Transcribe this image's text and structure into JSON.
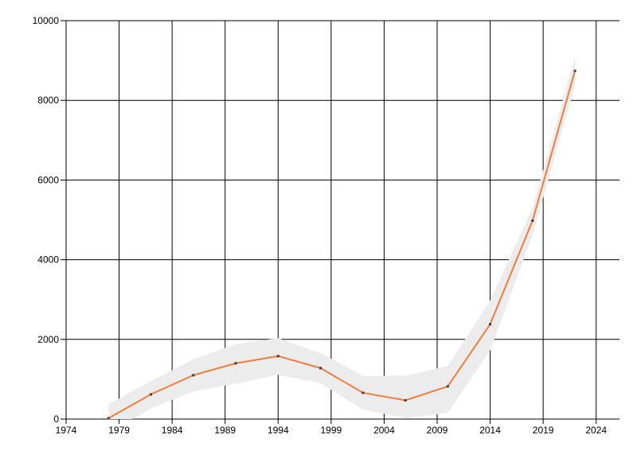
{
  "page": {
    "title": "",
    "background_color": "#ffffff"
  },
  "chart_data": {
    "type": "line",
    "title": "",
    "subtitle": "",
    "xlabel": "",
    "ylabel": "",
    "x": [
      1978,
      1982,
      1986,
      1990,
      1994,
      1998,
      2002,
      2006,
      2010,
      2014,
      2018,
      2022
    ],
    "series": [
      {
        "name": "value",
        "values": [
          20,
          620,
          1100,
          1400,
          1580,
          1280,
          660,
          470,
          820,
          2380,
          4980,
          8740
        ]
      }
    ],
    "confidence_band": {
      "lower": [
        -350,
        270,
        690,
        890,
        1110,
        900,
        240,
        20,
        160,
        1720,
        4620,
        8360
      ],
      "upper": [
        370,
        950,
        1500,
        1880,
        2030,
        1660,
        1080,
        1090,
        1330,
        2980,
        5300,
        9080
      ]
    },
    "x_tick_labels": [
      "1974",
      "1979",
      "1984",
      "1989",
      "1994",
      "1999",
      "2004",
      "2009",
      "2014",
      "2019",
      "2024"
    ],
    "x_ticks": [
      1974,
      1979,
      1984,
      1989,
      1994,
      1999,
      2004,
      2009,
      2014,
      2019,
      2024
    ],
    "y_tick_labels": [
      "0",
      "2000",
      "4000",
      "6000",
      "8000",
      "10000"
    ],
    "y_ticks": [
      0,
      2000,
      4000,
      6000,
      8000,
      10000
    ],
    "xlim": [
      1974,
      2026.2
    ],
    "ylim": [
      0,
      10000
    ],
    "grid": true,
    "legend": "none",
    "colors": {
      "line": "#f07d3c",
      "band": "#ececec",
      "grid": "#000000",
      "marker": "#3c3c3c",
      "text": "#000000",
      "background": "#ffffff"
    }
  }
}
